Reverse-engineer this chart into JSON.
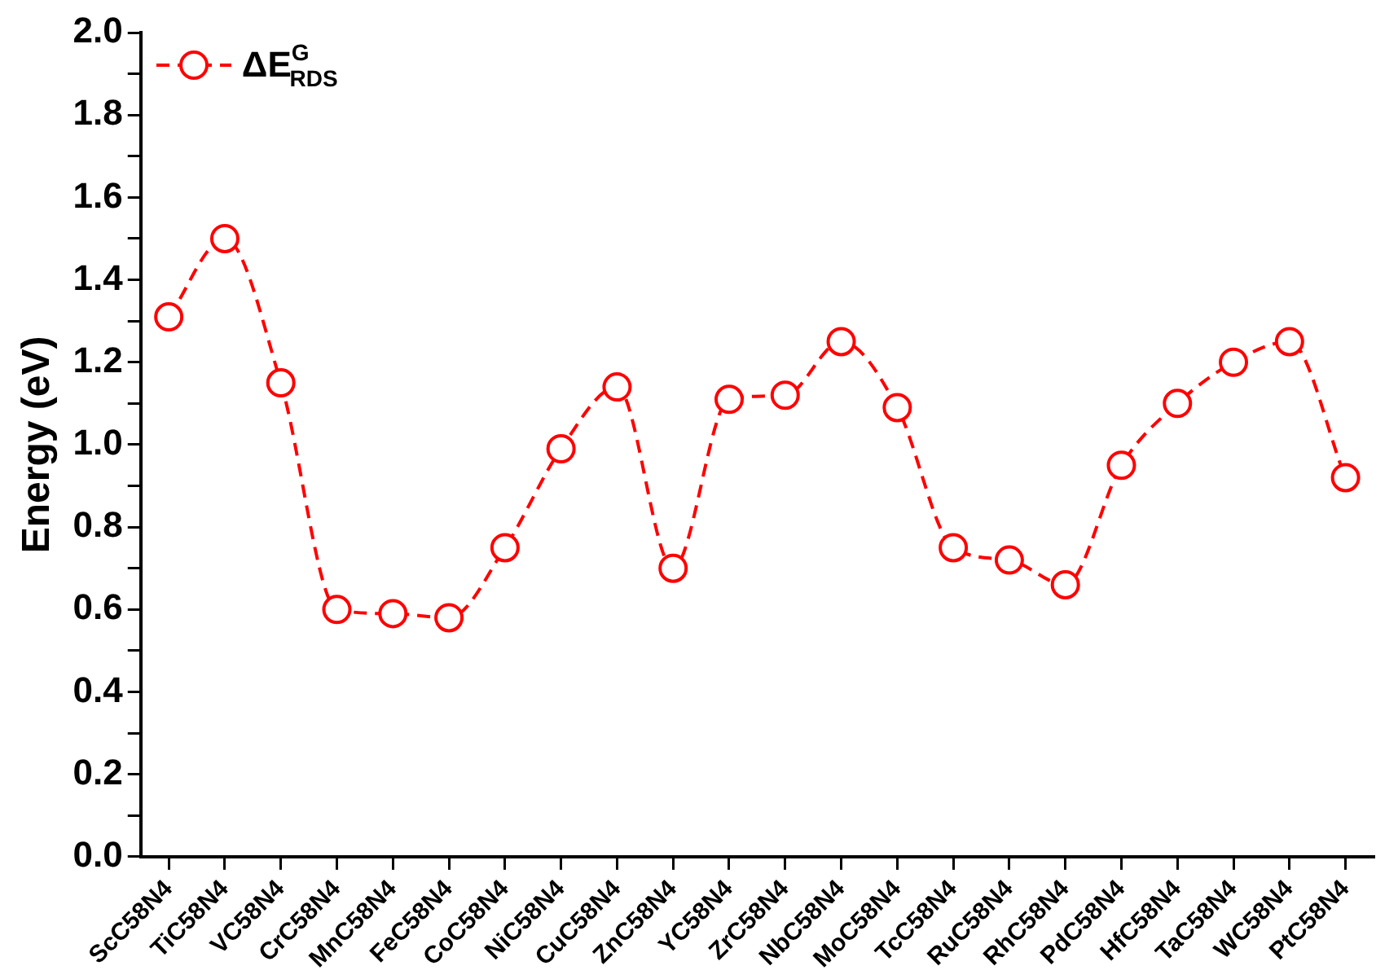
{
  "chart_data": {
    "type": "line",
    "ylabel": "Energy (eV)",
    "categories": [
      "ScC58N4",
      "TiC58N4",
      "VC58N4",
      "CrC58N4",
      "MnC58N4",
      "FeC58N4",
      "CoC58N4",
      "NiC58N4",
      "CuC58N4",
      "ZnC58N4",
      "YC58N4",
      "ZrC58N4",
      "NbC58N4",
      "MoC58N4",
      "TcC58N4",
      "RuC58N4",
      "RhC58N4",
      "PdC58N4",
      "HfC58N4",
      "TaC58N4",
      "WC58N4",
      "PtC58N4"
    ],
    "series": [
      {
        "name": "ΔE$^{G}$$_{RDS}$",
        "color": "#ff0000",
        "values": [
          1.31,
          1.5,
          1.15,
          0.6,
          0.59,
          0.58,
          0.75,
          0.99,
          1.14,
          0.7,
          1.11,
          1.12,
          1.25,
          1.09,
          0.75,
          0.72,
          0.66,
          0.95,
          1.1,
          1.2,
          1.25,
          0.92
        ]
      }
    ],
    "ylim": [
      0,
      2.0
    ],
    "yticks": [
      {
        "value": 0,
        "label": "0.0"
      },
      {
        "value": 0.1,
        "label": null
      },
      {
        "value": 0.2,
        "label": "0.2"
      },
      {
        "value": 0.3,
        "label": null
      },
      {
        "value": 0.4,
        "label": "0.4"
      },
      {
        "value": 0.5,
        "label": null
      },
      {
        "value": 0.6,
        "label": "0.6"
      },
      {
        "value": 0.7,
        "label": null
      },
      {
        "value": 0.8,
        "label": "0.8"
      },
      {
        "value": 0.9,
        "label": null
      },
      {
        "value": 1.0,
        "label": "1.0"
      },
      {
        "value": 1.1,
        "label": null
      },
      {
        "value": 1.2,
        "label": "1.2"
      },
      {
        "value": 1.3,
        "label": null
      },
      {
        "value": 1.4,
        "label": "1.4"
      },
      {
        "value": 1.5,
        "label": null
      },
      {
        "value": 1.6,
        "label": "1.6"
      },
      {
        "value": 1.7,
        "label": null
      },
      {
        "value": 1.8,
        "label": "1.8"
      },
      {
        "value": 1.9,
        "label": null
      },
      {
        "value": 2.0,
        "label": "2.0"
      }
    ],
    "grid": false,
    "legend": "top left",
    "marker": "circle",
    "line_style": "dashed"
  }
}
